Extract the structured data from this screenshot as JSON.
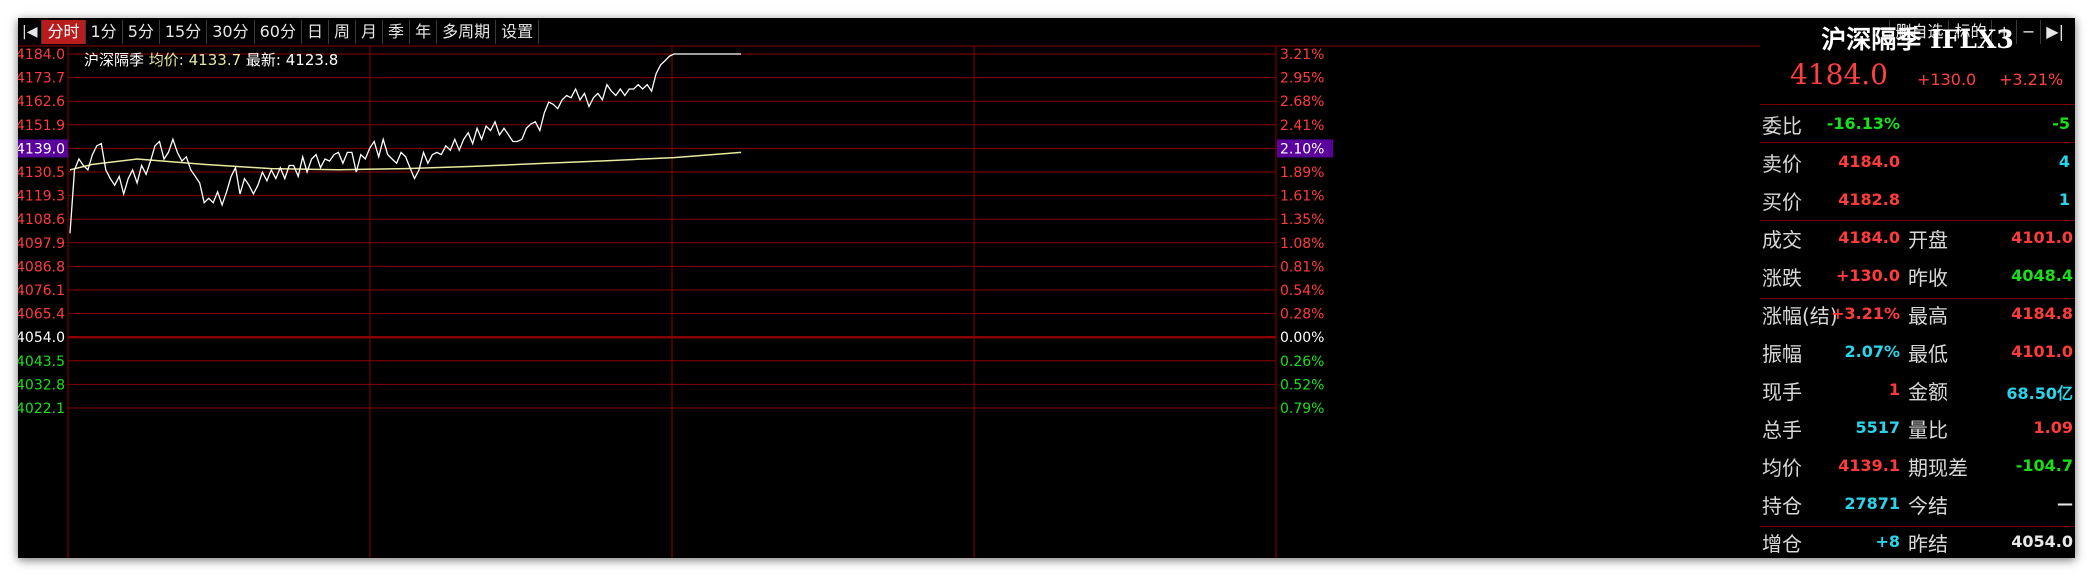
{
  "toolbar": {
    "items": [
      {
        "label": "|◀",
        "active": false
      },
      {
        "label": "分时",
        "active": true
      },
      {
        "label": "1分",
        "active": false
      },
      {
        "label": "5分",
        "active": false
      },
      {
        "label": "15分",
        "active": false
      },
      {
        "label": "30分",
        "active": false
      },
      {
        "label": "60分",
        "active": false
      },
      {
        "label": "日",
        "active": false
      },
      {
        "label": "周",
        "active": false
      },
      {
        "label": "月",
        "active": false
      },
      {
        "label": "季",
        "active": false
      },
      {
        "label": "年",
        "active": false
      },
      {
        "label": "多周期",
        "active": false
      },
      {
        "label": "设置",
        "active": false
      }
    ],
    "right": [
      "删自选",
      "标的",
      "+",
      "−",
      "▶|"
    ]
  },
  "infoline": {
    "name": "沪深隔季",
    "avg_label": "均价:",
    "avg_value": "4133.7",
    "last_label": "最新:",
    "last_value": "4123.8"
  },
  "chart_data": {
    "type": "line",
    "prev_close": 4054.0,
    "ylim": [
      4022.1,
      4184.0
    ],
    "y_ticks": [
      "4184.0",
      "4173.7",
      "4162.6",
      "4151.9",
      "4139.0",
      "4130.5",
      "4119.3",
      "4108.6",
      "4097.9",
      "4086.8",
      "4076.1",
      "4065.4",
      "4054.0",
      "4043.5",
      "4032.8",
      "4022.1"
    ],
    "pct_ticks": [
      "3.21%",
      "2.95%",
      "2.68%",
      "2.41%",
      "2.10%",
      "1.89%",
      "1.61%",
      "1.35%",
      "1.08%",
      "0.81%",
      "0.54%",
      "0.28%",
      "0.00%",
      "0.26%",
      "0.52%",
      "0.79%"
    ],
    "highlight_price": "4139.0",
    "highlight_pct": "2.10%",
    "total_minutes": 270,
    "series": [
      {
        "name": "最新",
        "color": "#ffffff",
        "x": [
          0,
          1,
          2,
          3,
          4,
          5,
          6,
          7,
          8,
          9,
          10,
          11,
          12,
          13,
          14,
          15,
          16,
          17,
          18,
          19,
          20,
          21,
          22,
          23,
          24,
          25,
          26,
          27,
          28,
          29,
          30,
          31,
          32,
          33,
          34,
          35,
          36,
          37,
          38,
          39,
          40,
          41,
          42,
          43,
          44,
          45,
          46,
          47,
          48,
          49,
          50,
          51,
          52,
          53,
          54,
          55,
          56,
          57,
          58,
          59,
          60,
          61,
          62,
          63,
          64,
          65,
          66,
          67,
          68,
          69,
          70,
          71,
          72,
          73,
          74,
          75,
          76,
          77,
          78,
          79,
          80,
          81,
          82,
          83,
          84,
          85,
          86,
          87,
          88,
          89,
          90,
          91,
          92,
          93,
          94,
          95,
          96,
          97,
          98,
          99,
          100,
          101,
          102,
          103,
          104,
          105,
          106,
          107,
          108,
          109,
          110,
          111,
          112,
          113,
          114,
          115,
          116,
          117,
          118,
          119,
          120,
          121,
          122,
          123,
          124,
          125,
          126,
          127,
          128,
          129,
          130,
          131,
          132,
          133,
          134,
          135,
          136,
          137,
          138,
          139,
          140,
          141,
          142,
          143,
          144,
          145,
          146,
          147,
          148,
          149,
          150
        ],
        "values": [
          4102,
          4131,
          4136,
          4133,
          4131,
          4138,
          4142,
          4143,
          4131,
          4127,
          4124,
          4128,
          4120,
          4127,
          4131,
          4125,
          4133,
          4129,
          4135,
          4142,
          4144,
          4136,
          4139,
          4145,
          4139,
          4135,
          4137,
          4131,
          4128,
          4125,
          4116,
          4118,
          4116,
          4121,
          4115,
          4121,
          4128,
          4132,
          4120,
          4127,
          4124,
          4120,
          4124,
          4130,
          4126,
          4131,
          4127,
          4132,
          4127,
          4133,
          4133,
          4128,
          4137,
          4130,
          4136,
          4138,
          4132,
          4136,
          4135,
          4138,
          4139,
          4134,
          4139,
          4139,
          4130,
          4138,
          4136,
          4141,
          4144,
          4137,
          4145,
          4138,
          4136,
          4134,
          4139,
          4137,
          4132,
          4127,
          4131,
          4139,
          4134,
          4138,
          4139,
          4138,
          4142,
          4140,
          4145,
          4140,
          4145,
          4148,
          4143,
          4150,
          4145,
          4151,
          4149,
          4153,
          4147,
          4150,
          4147,
          4144,
          4144,
          4145,
          4150,
          4152,
          4153,
          4149,
          4157,
          4162,
          4161,
          4159,
          4163,
          4165,
          4164,
          4168,
          4163,
          4166,
          4160,
          4164,
          4166,
          4163,
          4170,
          4167,
          4165,
          4168,
          4165,
          4168,
          4168,
          4170,
          4168,
          4170,
          4167,
          4175,
          4179,
          4181,
          4183,
          4184,
          4184,
          4184,
          4184,
          4184,
          4184,
          4184,
          4184,
          4184,
          4184,
          4184,
          4184,
          4184,
          4184,
          4184,
          4184
        ]
      },
      {
        "name": "均价",
        "color": "#e8e8a0",
        "x": [
          0,
          5,
          15,
          30,
          45,
          60,
          75,
          90,
          105,
          120,
          135,
          150
        ],
        "values": [
          4131,
          4133.5,
          4136,
          4133.5,
          4131.6,
          4131.1,
          4131.6,
          4132.6,
          4133.9,
          4135.2,
          4136.6,
          4139
        ]
      }
    ]
  },
  "panel": {
    "title": "沪深隔季 IFLX3",
    "price": "4184.0",
    "change": "+130.0",
    "change_pct": "+3.21%",
    "weibi": {
      "label": "委比",
      "value": "-16.13%",
      "extra": "-5"
    },
    "sell": {
      "label": "卖价",
      "value": "4184.0",
      "extra": "4"
    },
    "buy": {
      "label": "买价",
      "value": "4182.8",
      "extra": "1"
    },
    "rows": [
      {
        "l1": "成交",
        "v1": "4184.0",
        "c1": "red",
        "l2": "开盘",
        "v2": "4101.0",
        "c2": "red"
      },
      {
        "l1": "涨跌",
        "v1": "+130.0",
        "c1": "red",
        "l2": "昨收",
        "v2": "4048.4",
        "c2": "green"
      },
      {
        "l1": "涨幅(结)",
        "v1": "+3.21%",
        "c1": "red",
        "l2": "最高",
        "v2": "4184.8",
        "c2": "red"
      },
      {
        "l1": "振幅",
        "v1": "2.07%",
        "c1": "cyan",
        "l2": "最低",
        "v2": "4101.0",
        "c2": "red"
      },
      {
        "l1": "现手",
        "v1": "1",
        "c1": "red",
        "l2": "金额",
        "v2": "68.50亿",
        "c2": "cyan"
      },
      {
        "l1": "总手",
        "v1": "5517",
        "c1": "cyan",
        "l2": "量比",
        "v2": "1.09",
        "c2": "red"
      },
      {
        "l1": "均价",
        "v1": "4139.1",
        "c1": "red",
        "l2": "期现差",
        "v2": "-104.7",
        "c2": "green"
      },
      {
        "l1": "持仓",
        "v1": "27871",
        "c1": "cyan",
        "l2": "今结",
        "v2": "—",
        "c2": "white"
      },
      {
        "l1": "增仓",
        "v1": "+8",
        "c1": "cyan",
        "l2": "昨结",
        "v2": "4054.0",
        "c2": "white"
      }
    ]
  },
  "colors": {
    "up": "#ff3b3b",
    "down": "#18e018",
    "grid": "#8a0000",
    "highlight": "#5a009c"
  }
}
